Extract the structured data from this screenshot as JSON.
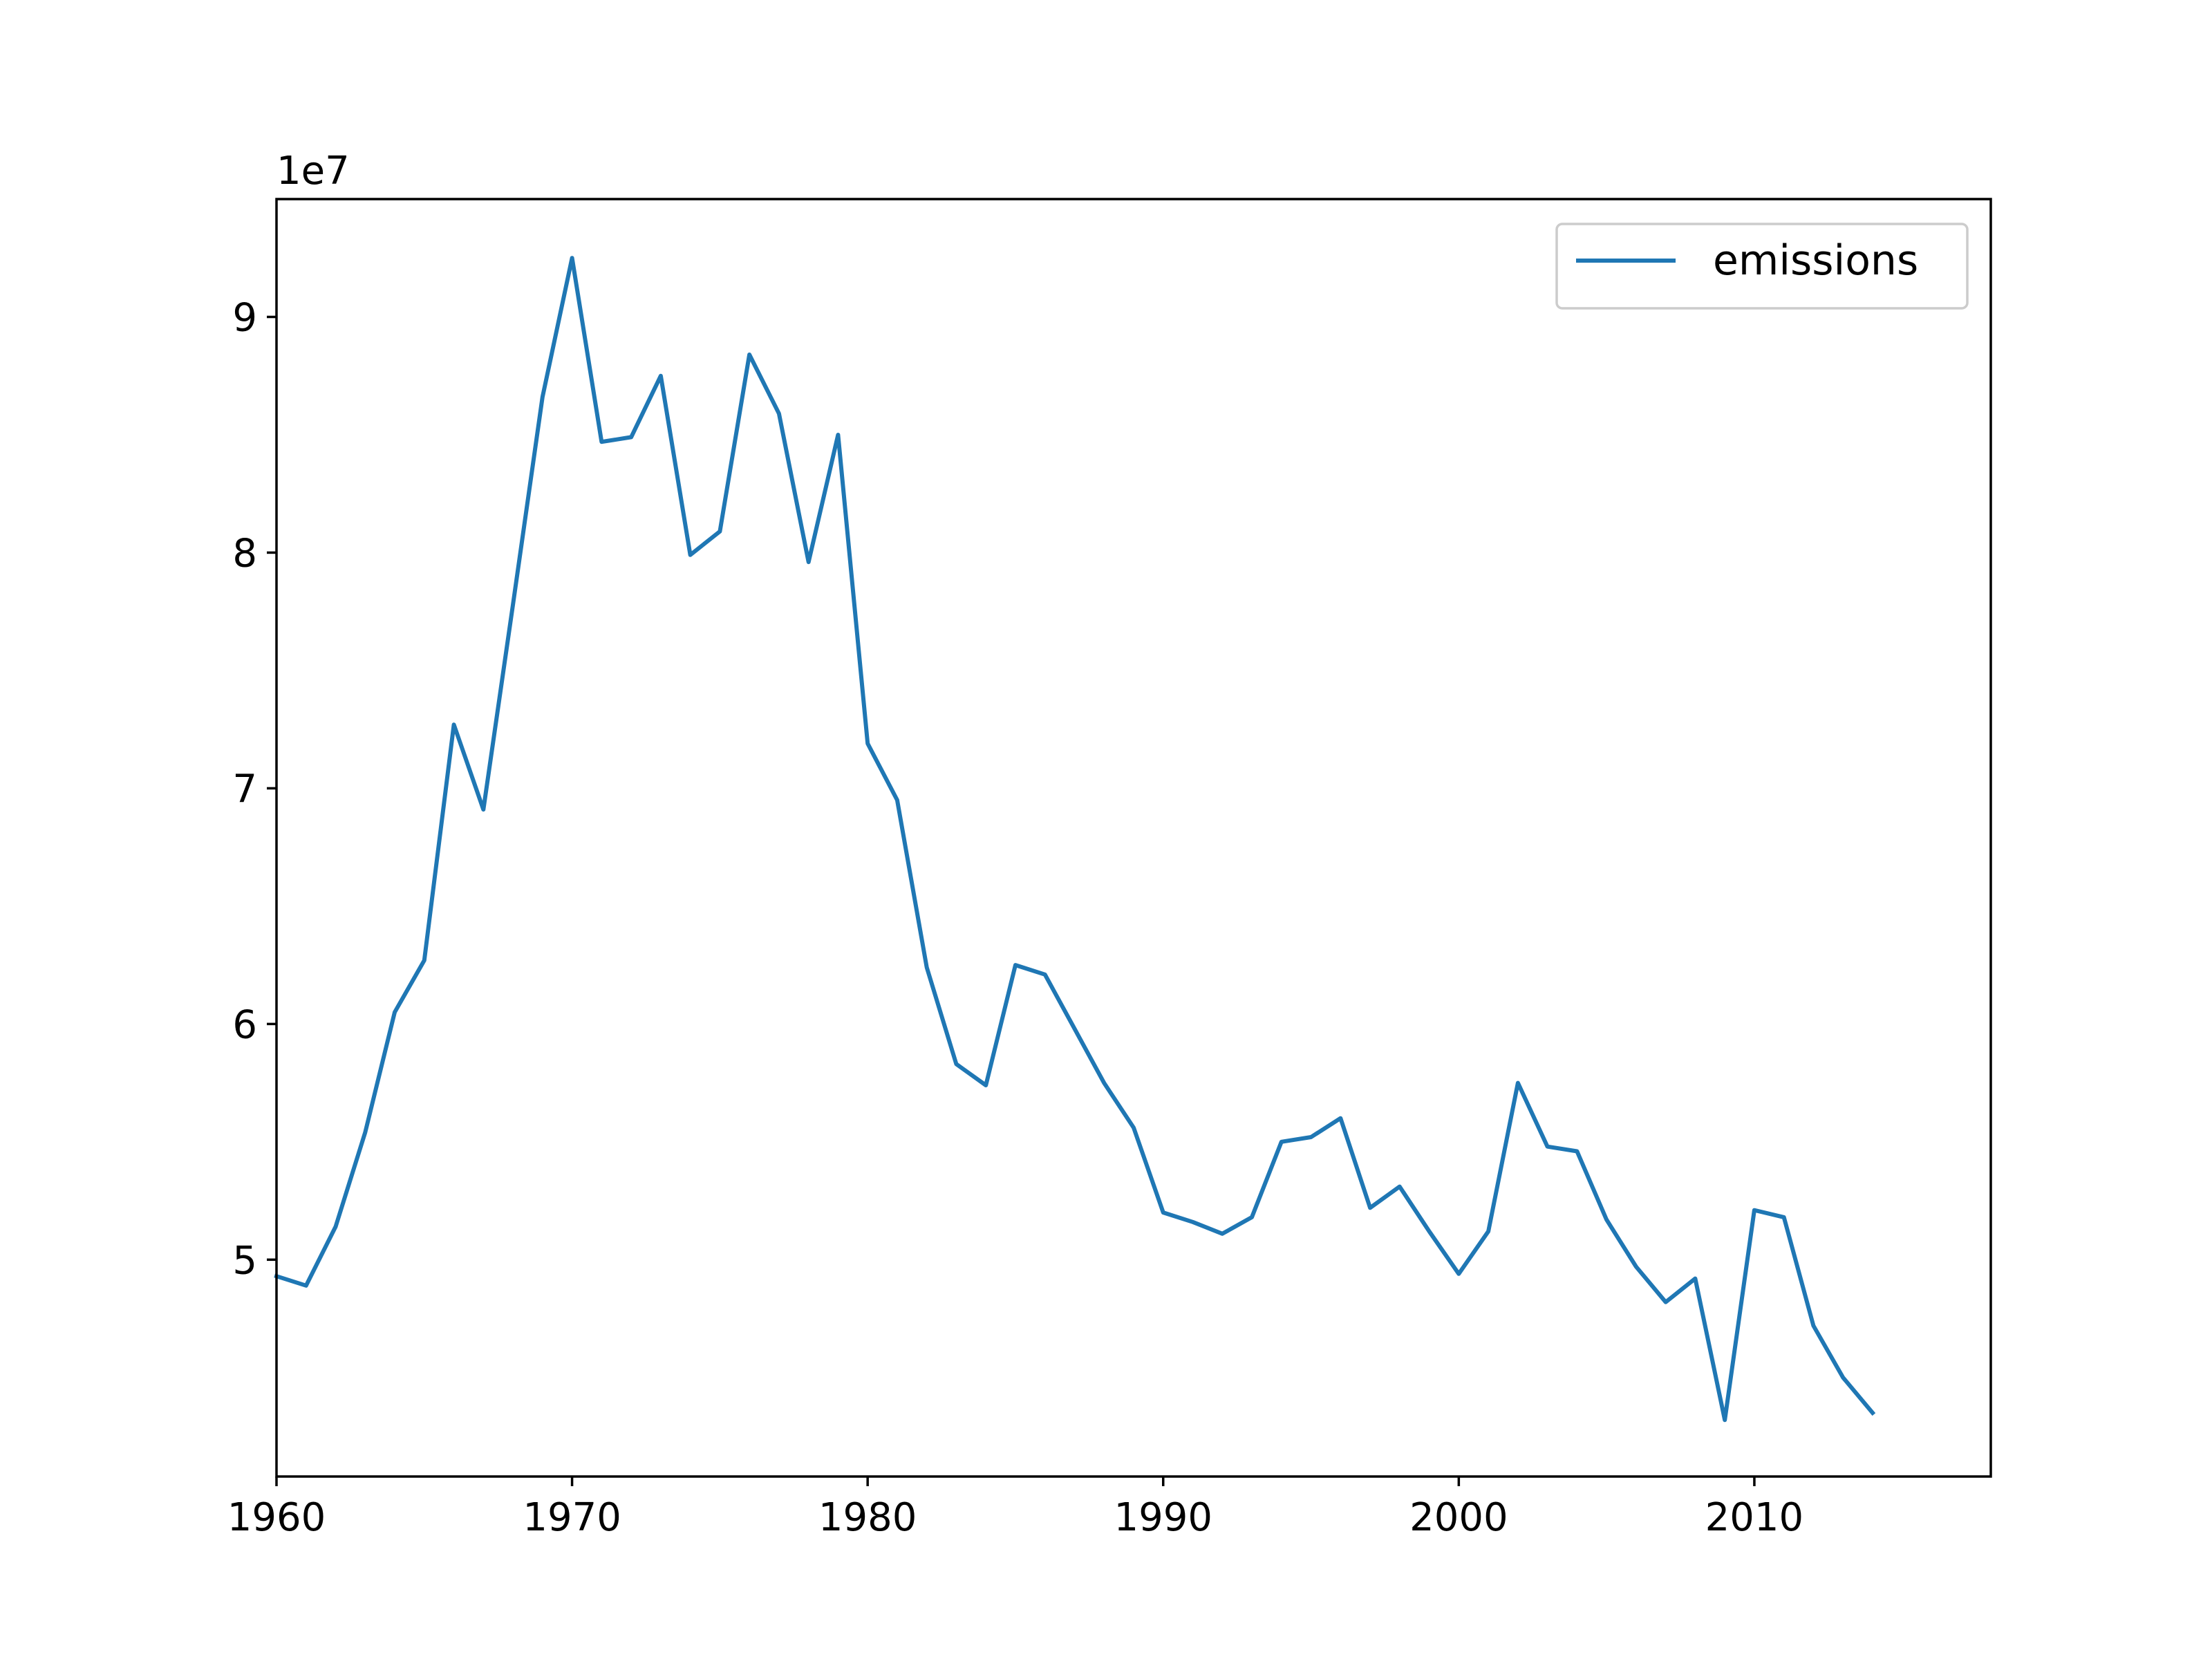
{
  "chart_data": {
    "type": "line",
    "x_tick_labels": [
      "1960",
      "1970",
      "1980",
      "1990",
      "2000",
      "2010"
    ],
    "x_ticks": [
      1960,
      1970,
      1980,
      1990,
      2000,
      2010
    ],
    "y_tick_labels": [
      "5",
      "6",
      "7",
      "8",
      "9"
    ],
    "y_ticks": [
      5,
      6,
      7,
      8,
      9
    ],
    "y_offset_label": "1e7",
    "xlim": [
      1960,
      2018
    ],
    "ylim": [
      4.08,
      9.5
    ],
    "grid": false,
    "legend_position": "top-right",
    "colors": {
      "series": "#1f77b4",
      "axes": "#000000",
      "legend_border": "#cccccc"
    },
    "series": [
      {
        "name": "emissions",
        "x": [
          1960,
          1961,
          1962,
          1963,
          1964,
          1965,
          1966,
          1967,
          1968,
          1969,
          1970,
          1971,
          1972,
          1973,
          1974,
          1975,
          1976,
          1977,
          1978,
          1979,
          1980,
          1981,
          1982,
          1983,
          1984,
          1985,
          1986,
          1987,
          1988,
          1989,
          1990,
          1991,
          1992,
          1993,
          1994,
          1995,
          1996,
          1997,
          1998,
          1999,
          2000,
          2001,
          2002,
          2003,
          2004,
          2005,
          2006,
          2007,
          2008,
          2009,
          2010,
          2011,
          2012,
          2013,
          2014
        ],
        "values": [
          4.93,
          4.89,
          5.14,
          5.54,
          6.05,
          6.27,
          7.27,
          6.91,
          7.78,
          8.66,
          9.25,
          8.47,
          8.49,
          8.75,
          7.99,
          8.09,
          8.84,
          8.59,
          7.96,
          8.5,
          7.19,
          6.95,
          6.24,
          5.83,
          5.74,
          6.25,
          6.21,
          5.98,
          5.75,
          5.56,
          5.2,
          5.16,
          5.11,
          5.18,
          5.5,
          5.52,
          5.6,
          5.22,
          5.31,
          5.12,
          4.94,
          5.12,
          5.75,
          5.48,
          5.46,
          5.17,
          4.97,
          4.82,
          4.92,
          4.32,
          5.21,
          5.18,
          4.72,
          4.5,
          4.35
        ]
      }
    ]
  }
}
